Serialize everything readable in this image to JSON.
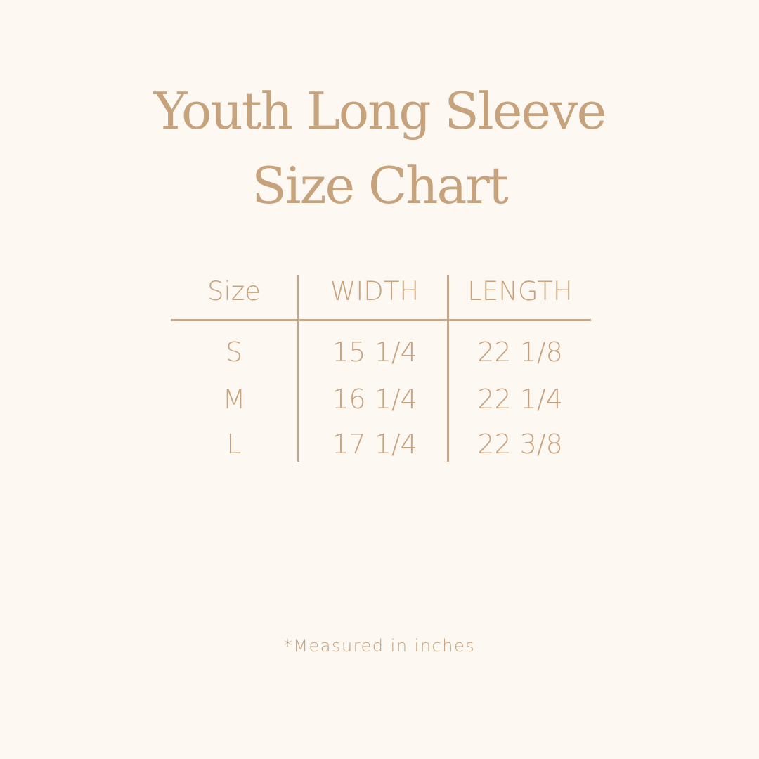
{
  "title": {
    "line1": "Youth Long Sleeve",
    "line2": "Size Chart"
  },
  "colors": {
    "background": "#fdf8f1",
    "text": "#c6a27d",
    "rule": "#c3a78d"
  },
  "table": {
    "headers": [
      "Size",
      "WIDTH",
      "LENGTH"
    ],
    "rows": [
      [
        "S",
        "15 1/4",
        "22 1/8"
      ],
      [
        "M",
        "16 1/4",
        "22 1/4"
      ],
      [
        "L",
        "17 1/4",
        "22 3/8"
      ]
    ]
  },
  "footnote": "*Measured in inches"
}
